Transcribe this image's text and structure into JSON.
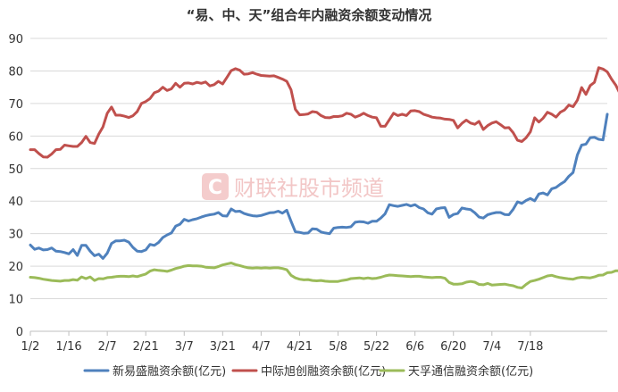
{
  "chart_data": {
    "type": "line",
    "title": "“易、中、天”组合年内融资余额变动情况",
    "xlabel": "",
    "ylabel": "",
    "ylim": [
      0,
      90
    ],
    "yticks": [
      0,
      10,
      20,
      30,
      40,
      50,
      60,
      70,
      80,
      90
    ],
    "xtick_labels": [
      "1/2",
      "1/16",
      "2/7",
      "2/21",
      "3/7",
      "3/21",
      "4/7",
      "4/21",
      "5/8",
      "5/22",
      "6/6",
      "6/20",
      "7/4",
      "7/18"
    ],
    "xtick_index": [
      0,
      9,
      18,
      27,
      36,
      45,
      54,
      63,
      72,
      81,
      90,
      99,
      108,
      117
    ],
    "grid": "horizontal",
    "legend": "bottom",
    "watermark": "财联社股市频道",
    "series": [
      {
        "name": "新易盛融资余额(亿元)",
        "color": "#4f81bd",
        "values": [
          26.5,
          25.2,
          25.6,
          25.0,
          25.1,
          25.6,
          24.6,
          24.5,
          24.2,
          23.8,
          25.1,
          23.3,
          26.4,
          26.4,
          24.6,
          23.2,
          23.7,
          22.4,
          24.0,
          27.0,
          27.8,
          27.8,
          28.0,
          27.4,
          25.8,
          24.6,
          24.5,
          25.0,
          26.7,
          26.4,
          27.3,
          28.8,
          29.6,
          30.2,
          32.3,
          32.9,
          34.4,
          33.9,
          34.3,
          34.6,
          35.1,
          35.5,
          35.8,
          36.0,
          36.5,
          35.5,
          35.4,
          37.6,
          36.8,
          36.9,
          36.2,
          35.8,
          35.5,
          35.4,
          35.6,
          36.0,
          36.4,
          36.5,
          36.9,
          36.3,
          37.2,
          33.8,
          30.6,
          30.4,
          30.1,
          30.2,
          31.5,
          31.4,
          30.5,
          30.2,
          30.0,
          31.7,
          31.9,
          32.0,
          31.9,
          32.1,
          33.5,
          33.7,
          33.6,
          33.2,
          33.8,
          33.8,
          34.8,
          36.1,
          38.9,
          38.6,
          38.4,
          38.7,
          39.0,
          38.5,
          38.9,
          38.0,
          37.6,
          36.4,
          36.0,
          37.6,
          37.9,
          38.0,
          35.0,
          35.9,
          36.2,
          37.9,
          37.6,
          37.4,
          36.4,
          35.1,
          34.8,
          35.8,
          36.2,
          36.5,
          36.5,
          35.9,
          35.8,
          37.5,
          39.8,
          39.3,
          40.2,
          40.8,
          40.1,
          42.2,
          42.5,
          41.9,
          43.8,
          44.2,
          45.2,
          46.0,
          47.6,
          48.8,
          54.2,
          57.2,
          57.5,
          59.5,
          59.6,
          59.0,
          58.8,
          66.7
        ]
      },
      {
        "name": "中际旭创融资余额(亿元)",
        "color": "#c0504d",
        "values": [
          55.8,
          55.8,
          54.6,
          53.6,
          53.5,
          54.5,
          55.8,
          55.9,
          57.2,
          57.0,
          56.8,
          56.8,
          58.0,
          59.9,
          58.0,
          57.7,
          60.6,
          62.8,
          67.0,
          68.9,
          66.4,
          66.4,
          66.1,
          65.7,
          66.2,
          67.5,
          70.0,
          70.6,
          71.5,
          73.3,
          73.8,
          75.0,
          74.0,
          74.5,
          76.2,
          75.0,
          76.2,
          76.3,
          76.0,
          76.5,
          76.2,
          76.6,
          75.4,
          75.8,
          76.8,
          76.0,
          78.0,
          80.1,
          80.7,
          80.2,
          79.0,
          79.1,
          79.5,
          79.0,
          78.6,
          78.5,
          78.4,
          78.5,
          78.0,
          77.5,
          76.8,
          74.2,
          68.2,
          66.5,
          66.6,
          66.8,
          67.5,
          67.3,
          66.3,
          65.7,
          65.6,
          66.0,
          66.0,
          66.2,
          67.0,
          66.7,
          65.8,
          66.3,
          67.0,
          66.3,
          65.8,
          65.6,
          63.0,
          63.0,
          65.0,
          67.0,
          66.3,
          66.7,
          66.3,
          67.7,
          67.8,
          67.5,
          66.7,
          66.3,
          65.8,
          65.6,
          65.5,
          65.2,
          65.1,
          64.8,
          62.5,
          63.9,
          64.9,
          64.0,
          63.6,
          64.5,
          62.0,
          63.2,
          64.0,
          64.4,
          63.5,
          62.5,
          62.6,
          61.0,
          58.7,
          58.3,
          59.5,
          61.3,
          65.6,
          64.3,
          65.5,
          67.3,
          66.7,
          65.8,
          67.3,
          68.0,
          69.5,
          69.0,
          71.0,
          74.9,
          72.8,
          75.5,
          76.5,
          81.0,
          80.6,
          79.7,
          77.5,
          75.6,
          72.9
        ]
      },
      {
        "name": "天孚通信融资余额(亿元)",
        "color": "#9bbb59",
        "values": [
          16.6,
          16.5,
          16.3,
          16.0,
          15.8,
          15.6,
          15.5,
          15.4,
          15.6,
          15.6,
          15.9,
          15.7,
          16.7,
          16.2,
          16.7,
          15.6,
          16.2,
          16.1,
          16.5,
          16.6,
          16.8,
          16.9,
          16.9,
          16.8,
          17.0,
          16.8,
          17.2,
          17.6,
          18.5,
          18.9,
          18.7,
          18.6,
          18.4,
          18.8,
          19.3,
          19.6,
          20.0,
          20.2,
          20.1,
          20.1,
          20.0,
          19.7,
          19.6,
          19.5,
          19.9,
          20.4,
          20.7,
          21.0,
          20.5,
          20.2,
          19.8,
          19.5,
          19.4,
          19.5,
          19.4,
          19.5,
          19.4,
          19.5,
          19.5,
          19.3,
          18.9,
          17.2,
          16.4,
          16.0,
          15.8,
          15.9,
          15.6,
          15.5,
          15.6,
          15.4,
          15.3,
          15.3,
          15.3,
          15.6,
          15.8,
          16.2,
          16.3,
          16.4,
          16.2,
          16.4,
          16.2,
          16.3,
          16.6,
          17.0,
          17.3,
          17.2,
          17.1,
          17.0,
          16.9,
          16.8,
          16.9,
          16.9,
          16.7,
          16.6,
          16.5,
          16.6,
          16.6,
          16.3,
          15.0,
          14.5,
          14.5,
          14.6,
          15.1,
          15.3,
          15.1,
          14.4,
          14.3,
          14.7,
          14.2,
          14.3,
          14.4,
          14.5,
          14.2,
          14.0,
          13.5,
          13.3,
          14.4,
          15.3,
          15.6,
          16.0,
          16.5,
          17.0,
          17.2,
          16.8,
          16.5,
          16.3,
          16.1,
          16.0,
          16.4,
          16.6,
          16.5,
          16.4,
          16.7,
          17.2,
          17.3,
          18.0,
          18.1,
          18.6,
          18.6,
          18.6
        ]
      }
    ]
  }
}
